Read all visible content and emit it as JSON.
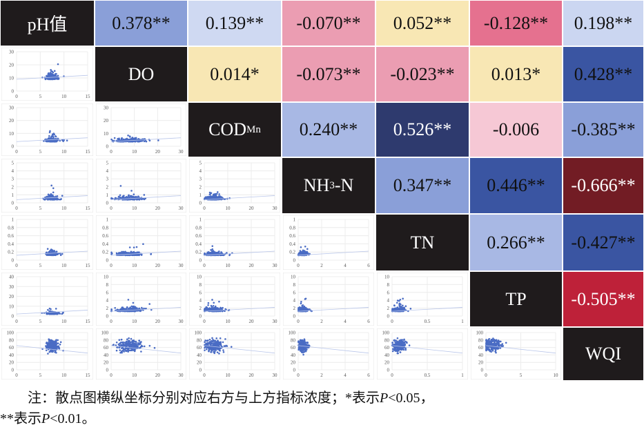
{
  "chart_data": {
    "type": "heatmap",
    "title": "",
    "variables": [
      {
        "main": "pH值",
        "sub": "",
        "suffix": ""
      },
      {
        "main": "DO",
        "sub": "",
        "suffix": ""
      },
      {
        "main": "COD",
        "sub": "Mn",
        "suffix": ""
      },
      {
        "main": "NH",
        "sub": "3",
        "suffix": "-N"
      },
      {
        "main": "TN",
        "sub": "",
        "suffix": ""
      },
      {
        "main": "TP",
        "sub": "",
        "suffix": ""
      },
      {
        "main": "WQI",
        "sub": "",
        "suffix": ""
      }
    ],
    "correlations": [
      {
        "row": 0,
        "col": 1,
        "label": "0.378**",
        "value": 0.378,
        "bg": "#8a9fd8",
        "fg": "#111111"
      },
      {
        "row": 0,
        "col": 2,
        "label": "0.139**",
        "value": 0.139,
        "bg": "#cfd9f2",
        "fg": "#111111"
      },
      {
        "row": 0,
        "col": 3,
        "label": "-0.070**",
        "value": -0.07,
        "bg": "#eb9db2",
        "fg": "#111111"
      },
      {
        "row": 0,
        "col": 4,
        "label": "0.052**",
        "value": 0.052,
        "bg": "#f8e7b4",
        "fg": "#111111"
      },
      {
        "row": 0,
        "col": 5,
        "label": "-0.128**",
        "value": -0.128,
        "bg": "#e5718f",
        "fg": "#111111"
      },
      {
        "row": 0,
        "col": 6,
        "label": "0.198**",
        "value": 0.198,
        "bg": "#cbd6f1",
        "fg": "#111111"
      },
      {
        "row": 1,
        "col": 2,
        "label": "0.014*",
        "value": 0.014,
        "bg": "#f8e7b4",
        "fg": "#111111"
      },
      {
        "row": 1,
        "col": 3,
        "label": "-0.073**",
        "value": -0.073,
        "bg": "#eb9db2",
        "fg": "#111111"
      },
      {
        "row": 1,
        "col": 4,
        "label": "-0.023**",
        "value": -0.023,
        "bg": "#eb9db2",
        "fg": "#111111"
      },
      {
        "row": 1,
        "col": 5,
        "label": "0.013*",
        "value": 0.013,
        "bg": "#f8e7b4",
        "fg": "#111111"
      },
      {
        "row": 1,
        "col": 6,
        "label": "0.428**",
        "value": 0.428,
        "bg": "#3a55a2",
        "fg": "#111111"
      },
      {
        "row": 2,
        "col": 3,
        "label": "0.240**",
        "value": 0.24,
        "bg": "#a8b8e4",
        "fg": "#111111"
      },
      {
        "row": 2,
        "col": 4,
        "label": "0.526**",
        "value": 0.526,
        "bg": "#2e3a6e",
        "fg": "#ffffff"
      },
      {
        "row": 2,
        "col": 5,
        "label": "-0.006",
        "value": -0.006,
        "bg": "#f6c8d5",
        "fg": "#111111"
      },
      {
        "row": 2,
        "col": 6,
        "label": "-0.385**",
        "value": -0.385,
        "bg": "#8a9fd8",
        "fg": "#111111"
      },
      {
        "row": 3,
        "col": 4,
        "label": "0.347**",
        "value": 0.347,
        "bg": "#8a9fd8",
        "fg": "#111111"
      },
      {
        "row": 3,
        "col": 5,
        "label": "0.446**",
        "value": 0.446,
        "bg": "#3a55a2",
        "fg": "#111111"
      },
      {
        "row": 3,
        "col": 6,
        "label": "-0.666**",
        "value": -0.666,
        "bg": "#721c24",
        "fg": "#ffffff"
      },
      {
        "row": 4,
        "col": 5,
        "label": "0.266**",
        "value": 0.266,
        "bg": "#a8b8e4",
        "fg": "#111111"
      },
      {
        "row": 4,
        "col": 6,
        "label": "-0.427**",
        "value": -0.427,
        "bg": "#3a55a2",
        "fg": "#111111"
      },
      {
        "row": 5,
        "col": 6,
        "label": "-0.505**",
        "value": -0.505,
        "bg": "#be2139",
        "fg": "#ffffff"
      }
    ],
    "scatter_x_ticks": [
      [
        "0",
        "5",
        "10",
        "15"
      ],
      [
        "0",
        "10",
        "20",
        "30"
      ],
      [
        "0",
        "10",
        "20",
        "30"
      ],
      [
        "0",
        "2",
        "4",
        "6"
      ],
      [
        "0",
        "0.5",
        "1"
      ],
      [
        "0",
        "5",
        "10"
      ]
    ],
    "scatter_x_range": [
      [
        0,
        15
      ],
      [
        0,
        30
      ],
      [
        0,
        30
      ],
      [
        0,
        6
      ],
      [
        0,
        1
      ],
      [
        0,
        10
      ]
    ],
    "scatter_y_ticks": [
      null,
      [
        "0",
        "10",
        "20",
        "30"
      ],
      [
        "0",
        "10",
        "20",
        "30"
      ],
      [
        "0",
        "1",
        "2",
        "3",
        "4",
        "5"
      ],
      [
        "0",
        "0.2",
        "0.4",
        "0.6",
        "0.8",
        "1"
      ],
      [
        "0",
        "2",
        "4",
        "6",
        "8",
        "10"
      ],
      [
        "0",
        "20",
        "40",
        "60",
        "80",
        "100"
      ]
    ],
    "scatter_y_range": [
      null,
      [
        0,
        30
      ],
      [
        0,
        30
      ],
      [
        0,
        5
      ],
      [
        0,
        1
      ],
      [
        0,
        10
      ],
      [
        0,
        100
      ]
    ],
    "scatter_tp_ph_y_ticks": [
      "0",
      "10",
      "20",
      "30",
      "40"
    ],
    "scatter_tp_ph_y_range": [
      0,
      40
    ],
    "point_color": "#4a6cc4",
    "diag_color": "#1f1b1c"
  },
  "caption": {
    "line1_prefix": "注：散点图横纵坐标分别对应右方与上方指标浓度；*表示",
    "p1": "P",
    "line1_suffix": "<0.05，",
    "line2_prefix": "**表示",
    "p2": "P",
    "line2_suffix": "<0.01。"
  }
}
